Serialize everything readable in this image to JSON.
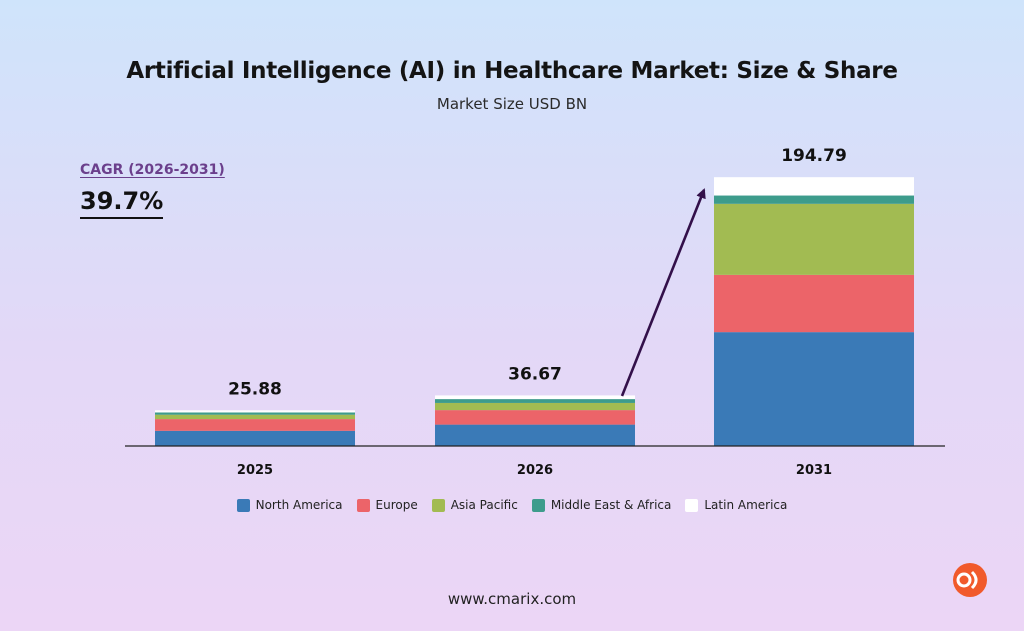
{
  "header": {
    "title": "Artificial Intelligence (AI) in Healthcare Market: Size & Share",
    "subtitle": "Market Size USD BN"
  },
  "cagr": {
    "label": "CAGR (2026-2031)",
    "value": "39.7%"
  },
  "chart_data": {
    "type": "bar",
    "stacked": true,
    "title": "Artificial Intelligence (AI) in Healthcare Market: Size & Share",
    "subtitle": "Market Size USD BN",
    "categories": [
      "2025",
      "2026",
      "2031"
    ],
    "totals": [
      25.88,
      36.67,
      194.79
    ],
    "total_labels": [
      "25.88",
      "36.67",
      "194.79"
    ],
    "series": [
      {
        "name": "North America",
        "color": "#3a7ab7",
        "values": [
          11.0,
          15.5,
          82.5
        ]
      },
      {
        "name": "Europe",
        "color": "#ec6469",
        "values": [
          8.5,
          10.5,
          41.5
        ]
      },
      {
        "name": "Asia Pacific",
        "color": "#a2bb52",
        "values": [
          3.2,
          5.2,
          51.5
        ]
      },
      {
        "name": "Middle East & Africa",
        "color": "#3d9c8c",
        "values": [
          1.6,
          2.8,
          6.0
        ]
      },
      {
        "name": "Latin America",
        "color": "#ffffff",
        "values": [
          1.58,
          2.67,
          13.29
        ]
      }
    ],
    "ylim": [
      0,
      200
    ],
    "legend_position": "bottom",
    "grid": false,
    "annotations": [
      "CAGR (2026-2031)",
      "39.7%"
    ],
    "growth_arrow": {
      "from": "2026",
      "to": "2031",
      "color": "#33104a"
    }
  },
  "footer": {
    "website": "www.cmarix.com"
  },
  "logo": {
    "icon": "cmarix-logo-icon",
    "color": "#f15a2b"
  }
}
